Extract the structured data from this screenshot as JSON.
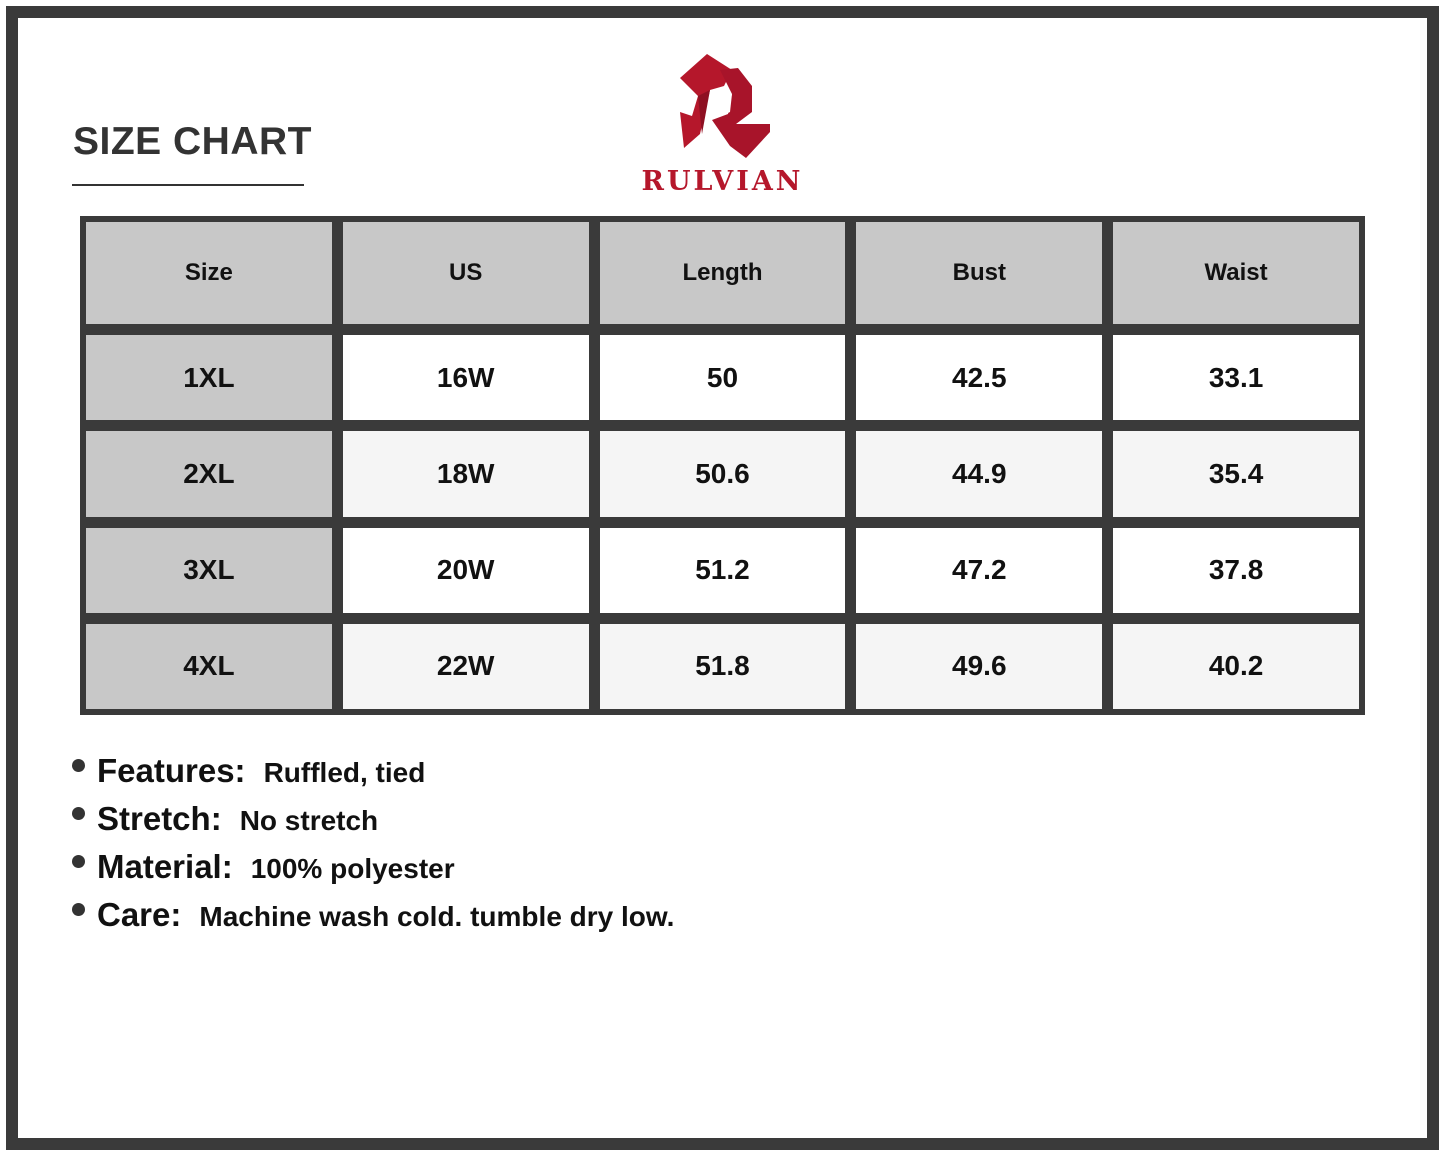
{
  "title": "SIZE CHART",
  "brand": {
    "name": "RULVIAN",
    "color": "#b5172b"
  },
  "table": {
    "headers": [
      "Size",
      "US",
      "Length",
      "Bust",
      "Waist"
    ],
    "rows": [
      [
        "1XL",
        "16W",
        "50",
        "42.5",
        "33.1"
      ],
      [
        "2XL",
        "18W",
        "50.6",
        "44.9",
        "35.4"
      ],
      [
        "3XL",
        "20W",
        "51.2",
        "47.2",
        "37.8"
      ],
      [
        "4XL",
        "22W",
        "51.8",
        "49.6",
        "40.2"
      ]
    ]
  },
  "notes": [
    {
      "label": "Features:",
      "value": "Ruffled, tied"
    },
    {
      "label": "Stretch:",
      "value": "No stretch"
    },
    {
      "label": "Material:",
      "value": "100% polyester"
    },
    {
      "label": "Care:",
      "value": "Machine wash cold. tumble dry low."
    }
  ]
}
